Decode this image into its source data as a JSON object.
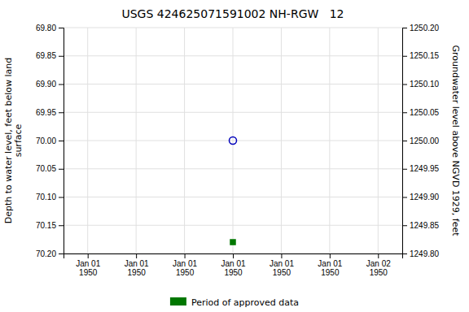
{
  "chart_data": {
    "type": "scatter",
    "title": "USGS 424625071591002 NH-RGW   12",
    "y_label": "Depth to water level, feet below land\nsurface",
    "y2_label": "Groundwater level above NGVD 1929, feet",
    "categories": [
      "Jan 01\n1950",
      "Jan 01\n1950",
      "Jan 01\n1950",
      "Jan 01\n1950",
      "Jan 01\n1950",
      "Jan 01\n1950",
      "Jan 02\n1950"
    ],
    "series": [
      {
        "color": "#0000bb",
        "marker": "open-circle",
        "values": [
          null,
          null,
          null,
          70.0,
          null,
          null,
          null
        ]
      },
      {
        "name": "Period of approved data",
        "color": "#007700",
        "marker": "square",
        "values": [
          null,
          null,
          null,
          70.18,
          null,
          null,
          null
        ]
      }
    ],
    "ylim": [
      70.2,
      69.8
    ],
    "yticks": [
      {
        "value": 69.8,
        "label": "69.80"
      },
      {
        "value": 69.85,
        "label": "69.85"
      },
      {
        "value": 69.9,
        "label": "69.90"
      },
      {
        "value": 69.95,
        "label": "69.95"
      },
      {
        "value": 70.0,
        "label": "70.00"
      },
      {
        "value": 70.05,
        "label": "70.05"
      },
      {
        "value": 70.1,
        "label": "70.10"
      },
      {
        "value": 70.15,
        "label": "70.15"
      },
      {
        "value": 70.2,
        "label": "70.20"
      }
    ],
    "y2lim": [
      1249.8,
      1250.2
    ],
    "y2ticks": [
      {
        "value": 1250.2,
        "label": "1250.20"
      },
      {
        "value": 1250.15,
        "label": "1250.15"
      },
      {
        "value": 1250.1,
        "label": "1250.10"
      },
      {
        "value": 1250.05,
        "label": "1250.05"
      },
      {
        "value": 1250.0,
        "label": "1250.00"
      },
      {
        "value": 1249.95,
        "label": "1249.95"
      },
      {
        "value": 1249.9,
        "label": "1249.90"
      },
      {
        "value": 1249.85,
        "label": "1249.85"
      },
      {
        "value": 1249.8,
        "label": "1249.80"
      }
    ],
    "grid": true,
    "legend": "bottom"
  }
}
